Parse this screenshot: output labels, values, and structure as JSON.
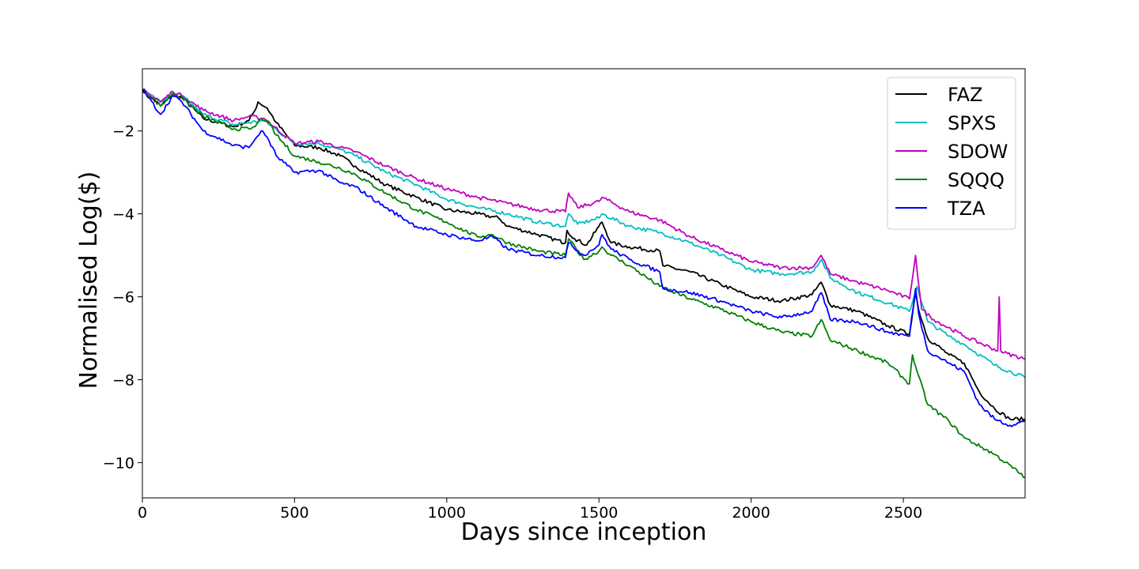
{
  "chart_data": {
    "type": "line",
    "title": "",
    "xlabel": "Days since inception",
    "ylabel": "Normalised Log($)",
    "xlim": [
      0,
      2900
    ],
    "ylim": [
      -10.85,
      -0.5
    ],
    "xticks": [
      0,
      500,
      1000,
      1500,
      2000,
      2500
    ],
    "xtick_labels": [
      "0",
      "500",
      "1000",
      "1500",
      "2000",
      "2500"
    ],
    "yticks": [
      -2,
      -4,
      -6,
      -8,
      -10
    ],
    "ytick_labels": [
      "−2",
      "−4",
      "−6",
      "−8",
      "−10"
    ],
    "grid": false,
    "legend_position": "top-right",
    "series": [
      {
        "name": "FAZ",
        "color": "#000000",
        "x": [
          0,
          60,
          100,
          130,
          200,
          300,
          350,
          370,
          380,
          410,
          440,
          500,
          580,
          650,
          700,
          800,
          900,
          1000,
          1100,
          1170,
          1200,
          1300,
          1390,
          1395,
          1420,
          1460,
          1500,
          1510,
          1540,
          1600,
          1700,
          1710,
          1800,
          1900,
          2000,
          2100,
          2200,
          2230,
          2260,
          2350,
          2450,
          2520,
          2540,
          2550,
          2580,
          2650,
          2700,
          2750,
          2800,
          2850,
          2900
        ],
        "y": [
          -1.0,
          -1.4,
          -1.1,
          -1.2,
          -1.7,
          -1.9,
          -1.75,
          -1.5,
          -1.3,
          -1.45,
          -1.8,
          -2.35,
          -2.4,
          -2.6,
          -2.85,
          -3.3,
          -3.6,
          -3.9,
          -4.0,
          -4.1,
          -4.3,
          -4.5,
          -4.7,
          -4.4,
          -4.6,
          -4.75,
          -4.3,
          -4.2,
          -4.7,
          -4.8,
          -4.9,
          -5.25,
          -5.4,
          -5.7,
          -6.0,
          -6.1,
          -5.95,
          -5.65,
          -6.2,
          -6.35,
          -6.7,
          -6.9,
          -5.9,
          -6.3,
          -7.0,
          -7.4,
          -7.6,
          -8.3,
          -8.7,
          -8.95,
          -8.95
        ]
      },
      {
        "name": "SPXS",
        "color": "#00bfbf",
        "x": [
          0,
          60,
          100,
          130,
          200,
          300,
          350,
          400,
          500,
          580,
          650,
          700,
          800,
          900,
          1000,
          1100,
          1200,
          1300,
          1390,
          1400,
          1430,
          1500,
          1510,
          1600,
          1700,
          1800,
          1900,
          2000,
          2100,
          2200,
          2230,
          2260,
          2350,
          2450,
          2520,
          2545,
          2580,
          2650,
          2700,
          2800,
          2900
        ],
        "y": [
          -1.0,
          -1.3,
          -1.1,
          -1.15,
          -1.6,
          -1.85,
          -1.8,
          -1.75,
          -2.3,
          -2.3,
          -2.45,
          -2.6,
          -3.0,
          -3.3,
          -3.65,
          -3.85,
          -4.0,
          -4.2,
          -4.3,
          -4.0,
          -4.25,
          -4.1,
          -4.0,
          -4.3,
          -4.45,
          -4.7,
          -5.0,
          -5.35,
          -5.45,
          -5.4,
          -5.1,
          -5.55,
          -5.9,
          -6.15,
          -6.35,
          -5.75,
          -6.6,
          -6.95,
          -7.15,
          -7.65,
          -7.95
        ]
      },
      {
        "name": "SDOW",
        "color": "#bf00bf",
        "x": [
          0,
          60,
          100,
          130,
          200,
          300,
          350,
          400,
          500,
          580,
          650,
          700,
          800,
          900,
          1000,
          1100,
          1200,
          1300,
          1390,
          1400,
          1430,
          1500,
          1510,
          1600,
          1700,
          1800,
          1900,
          2000,
          2100,
          2200,
          2230,
          2260,
          2350,
          2450,
          2520,
          2540,
          2560,
          2600,
          2700,
          2810,
          2815,
          2820,
          2830,
          2900
        ],
        "y": [
          -1.0,
          -1.3,
          -1.05,
          -1.15,
          -1.5,
          -1.75,
          -1.65,
          -1.7,
          -2.3,
          -2.25,
          -2.4,
          -2.5,
          -2.85,
          -3.15,
          -3.4,
          -3.6,
          -3.75,
          -3.9,
          -3.95,
          -3.5,
          -3.85,
          -3.7,
          -3.6,
          -3.95,
          -4.15,
          -4.55,
          -4.85,
          -5.15,
          -5.3,
          -5.3,
          -5.0,
          -5.45,
          -5.65,
          -5.85,
          -6.05,
          -5.0,
          -6.3,
          -6.55,
          -6.95,
          -7.3,
          -6.0,
          -7.3,
          -7.35,
          -7.5
        ]
      },
      {
        "name": "SQQQ",
        "color": "#008000",
        "x": [
          0,
          60,
          100,
          130,
          200,
          300,
          350,
          370,
          390,
          410,
          440,
          500,
          580,
          650,
          700,
          800,
          900,
          1000,
          1100,
          1150,
          1200,
          1300,
          1390,
          1400,
          1450,
          1500,
          1510,
          1540,
          1600,
          1700,
          1800,
          1900,
          2000,
          2100,
          2200,
          2230,
          2260,
          2350,
          2450,
          2520,
          2530,
          2545,
          2580,
          2650,
          2700,
          2800,
          2900
        ],
        "y": [
          -1.0,
          -1.4,
          -1.1,
          -1.2,
          -1.65,
          -1.95,
          -1.95,
          -1.9,
          -1.7,
          -1.75,
          -2.1,
          -2.6,
          -2.75,
          -2.9,
          -3.05,
          -3.5,
          -3.9,
          -4.2,
          -4.55,
          -4.5,
          -4.7,
          -4.9,
          -5.0,
          -4.6,
          -5.1,
          -4.9,
          -4.8,
          -5.0,
          -5.25,
          -5.75,
          -6.05,
          -6.3,
          -6.6,
          -6.85,
          -6.95,
          -6.55,
          -7.05,
          -7.3,
          -7.6,
          -8.1,
          -7.4,
          -7.8,
          -8.6,
          -9.0,
          -9.4,
          -9.8,
          -10.35
        ]
      },
      {
        "name": "TZA",
        "color": "#0000ff",
        "x": [
          0,
          60,
          100,
          130,
          200,
          300,
          350,
          370,
          390,
          410,
          440,
          500,
          580,
          650,
          700,
          800,
          900,
          1000,
          1100,
          1150,
          1200,
          1300,
          1390,
          1400,
          1450,
          1500,
          1510,
          1540,
          1600,
          1700,
          1710,
          1800,
          1900,
          2000,
          2100,
          2200,
          2230,
          2260,
          2350,
          2450,
          2520,
          2540,
          2550,
          2580,
          2650,
          2700,
          2750,
          2800,
          2850,
          2900
        ],
        "y": [
          -1.0,
          -1.6,
          -1.15,
          -1.3,
          -2.0,
          -2.35,
          -2.4,
          -2.2,
          -2.0,
          -2.15,
          -2.6,
          -3.0,
          -2.95,
          -3.25,
          -3.35,
          -3.85,
          -4.3,
          -4.5,
          -4.65,
          -4.55,
          -4.85,
          -5.0,
          -5.05,
          -4.7,
          -5.0,
          -4.75,
          -4.5,
          -4.85,
          -5.1,
          -5.4,
          -5.8,
          -5.9,
          -6.1,
          -6.35,
          -6.5,
          -6.35,
          -5.9,
          -6.55,
          -6.6,
          -6.85,
          -6.95,
          -5.8,
          -6.4,
          -7.3,
          -7.6,
          -7.8,
          -8.6,
          -8.95,
          -9.1,
          -9.0
        ]
      }
    ]
  }
}
